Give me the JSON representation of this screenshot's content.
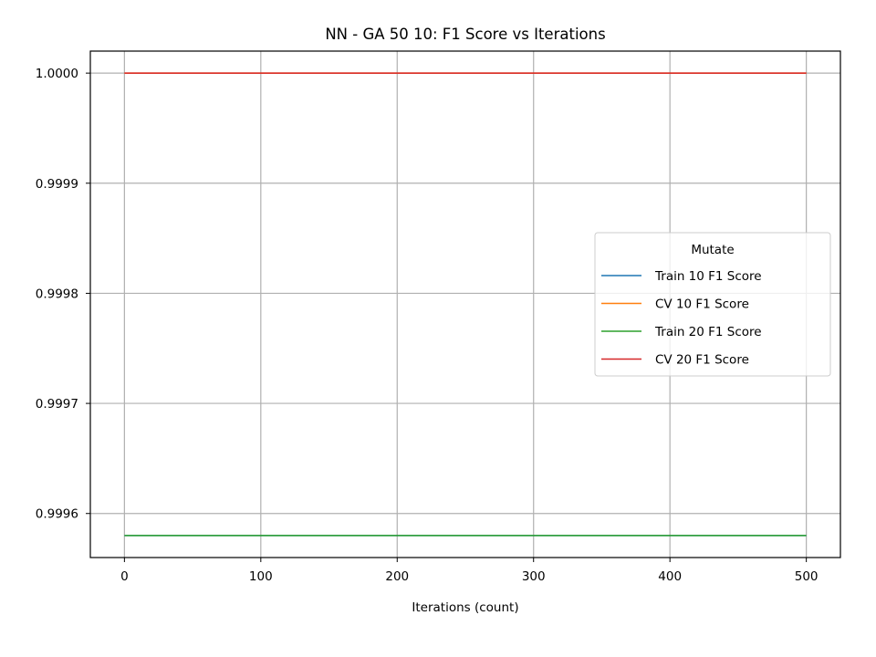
{
  "chart_data": {
    "type": "line",
    "title": "NN - GA 50 10: F1 Score vs Iterations",
    "xlabel": "Iterations (count)",
    "ylabel": "",
    "xlim": [
      -25,
      525
    ],
    "ylim": [
      0.99956,
      1.00002
    ],
    "xticks": [
      0,
      100,
      200,
      300,
      400,
      500
    ],
    "xtick_labels": [
      "0",
      "100",
      "200",
      "300",
      "400",
      "500"
    ],
    "yticks": [
      0.9996,
      0.9997,
      0.9998,
      0.9999,
      1.0
    ],
    "ytick_labels": [
      "0.9996",
      "0.9997",
      "0.9998",
      "0.9999",
      "1.0000"
    ],
    "grid": true,
    "legend": {
      "title": "Mutate",
      "placement": "center-right"
    },
    "series": [
      {
        "name": "Train 10 F1 Score",
        "color": "#1f77b4",
        "x": [
          0,
          500
        ],
        "y": [
          0.99958,
          0.99958
        ]
      },
      {
        "name": "CV 10 F1 Score",
        "color": "#ff7f0e",
        "x": [
          0,
          500
        ],
        "y": [
          1.0,
          1.0
        ]
      },
      {
        "name": "Train 20 F1 Score",
        "color": "#2ca02c",
        "x": [
          0,
          500
        ],
        "y": [
          0.99958,
          0.99958
        ]
      },
      {
        "name": "CV 20 F1 Score",
        "color": "#d62728",
        "x": [
          0,
          500
        ],
        "y": [
          1.0,
          1.0
        ]
      }
    ]
  }
}
